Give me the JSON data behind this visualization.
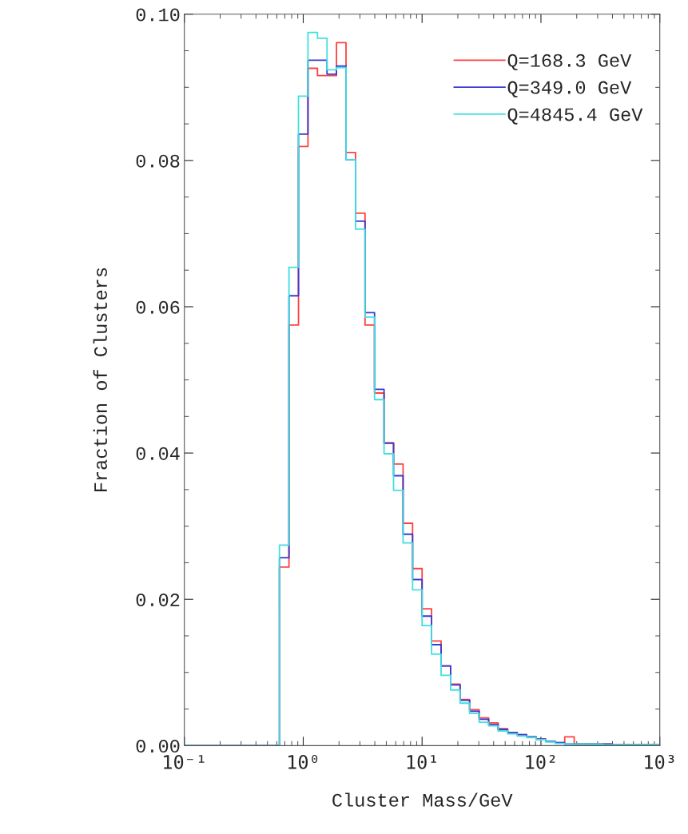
{
  "chart_data": {
    "type": "histogram",
    "xlabel": "Cluster Mass/GeV",
    "ylabel": "Fraction of Clusters",
    "bins": [
      0.1,
      0.1202,
      0.1445,
      0.1738,
      0.2089,
      0.2512,
      0.302,
      0.3631,
      0.4365,
      0.5248,
      0.631,
      0.7586,
      0.912,
      1.096,
      1.318,
      1.585,
      1.905,
      2.291,
      2.754,
      3.311,
      3.981,
      4.786,
      5.754,
      6.918,
      8.318,
      10,
      12.02,
      14.45,
      17.38,
      20.89,
      25.12,
      30.2,
      36.31,
      43.65,
      52.48,
      63.1,
      75.86,
      91.2,
      109.6,
      131.8,
      158.5,
      190.5,
      229.1,
      275.4,
      331.1,
      398.1,
      478.6,
      575.4,
      691.8,
      831.8,
      1000
    ],
    "series": [
      {
        "name": "Q=168.3 GeV",
        "color": "#ff4040",
        "values": [
          0,
          0,
          0,
          0,
          0,
          0,
          0,
          0,
          0,
          0,
          0.0244,
          0.0575,
          0.0819,
          0.0926,
          0.0916,
          0.0916,
          0.0961,
          0.0811,
          0.0728,
          0.0575,
          0.0482,
          0.0413,
          0.0385,
          0.0304,
          0.0242,
          0.0187,
          0.0143,
          0.0109,
          0.0084,
          0.0063,
          0.0049,
          0.0038,
          0.0031,
          0.0023,
          0.0018,
          0.0015,
          0.0012,
          0.0009,
          0.0006,
          0.0004,
          0.0012,
          0.0002,
          0.0002,
          0.0002,
          0.0002,
          0.0001,
          0.0001,
          0.0001,
          0.0001,
          0.0001
        ]
      },
      {
        "name": "Q=349.0 GeV",
        "color": "#3a3ad0",
        "values": [
          0,
          0,
          0,
          0,
          0,
          0,
          0,
          0,
          0,
          0,
          0.0257,
          0.0615,
          0.0836,
          0.0937,
          0.0937,
          0.0918,
          0.0929,
          0.0801,
          0.0717,
          0.0592,
          0.0487,
          0.0414,
          0.0369,
          0.0289,
          0.0227,
          0.0177,
          0.0138,
          0.0109,
          0.0083,
          0.0062,
          0.0047,
          0.0036,
          0.0029,
          0.0022,
          0.0018,
          0.0015,
          0.0012,
          0.0009,
          0.0006,
          0.0004,
          0.0002,
          0.0002,
          0.0002,
          0.0002,
          0.0002,
          0.0001,
          0.0001,
          0.0001,
          0.0001,
          0.0001
        ]
      },
      {
        "name": "Q=4845.4 GeV",
        "color": "#40e0e0",
        "values": [
          0,
          0,
          0,
          0,
          0,
          0,
          0,
          0,
          0,
          0,
          0.0274,
          0.0654,
          0.0888,
          0.0975,
          0.0967,
          0.0924,
          0.0927,
          0.0801,
          0.0706,
          0.0586,
          0.0473,
          0.0399,
          0.0349,
          0.0277,
          0.0213,
          0.0164,
          0.0125,
          0.0096,
          0.0076,
          0.0058,
          0.0044,
          0.0032,
          0.0027,
          0.002,
          0.0016,
          0.0013,
          0.0011,
          0.0008,
          0.0005,
          0.0003,
          0.0002,
          0.0002,
          0.0002,
          0.0002,
          0.0001,
          0.0001,
          0.0001,
          0.0001,
          0.0001,
          0.0001
        ]
      }
    ],
    "log": "x",
    "xlim": [
      0.1,
      1000
    ],
    "xticks": [
      {
        "value": 0.1,
        "label": "10⁻¹"
      },
      {
        "value": 1,
        "label": "10⁰"
      },
      {
        "value": 10,
        "label": "10¹"
      },
      {
        "value": 100,
        "label": "10²"
      },
      {
        "value": 1000,
        "label": "10³"
      }
    ],
    "ylim": [
      0,
      0.1
    ],
    "yticks": [
      {
        "value": 0,
        "label": "0.00"
      },
      0.02,
      0.04,
      0.06,
      0.08,
      {
        "value": 0.1,
        "label": "0.10"
      }
    ],
    "grid": false,
    "legend": "top right"
  }
}
